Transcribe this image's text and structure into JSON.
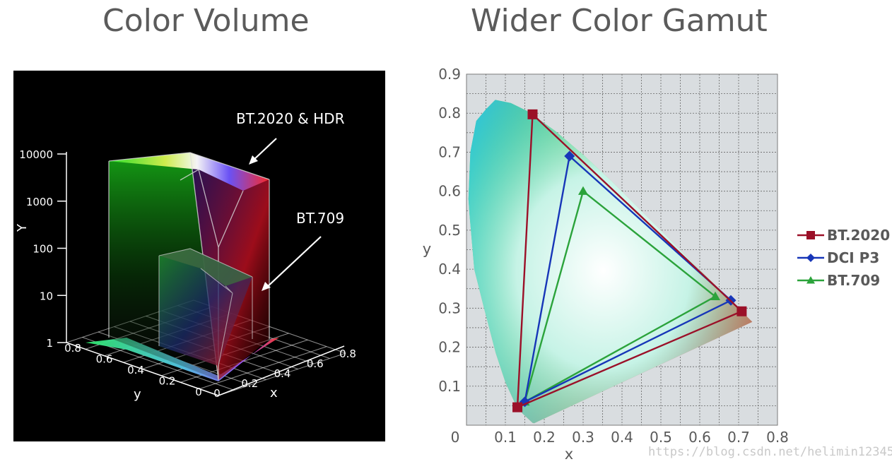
{
  "titles": {
    "left": "Color Volume",
    "right": "Wider Color Gamut"
  },
  "watermark": "https://blog.csdn.net/helimin12345",
  "chart_data": [
    {
      "type": "3d-volume",
      "title": "Color Volume",
      "axes": {
        "Y": {
          "label": "Y",
          "scale": "log",
          "ticks": [
            "1",
            "10",
            "100",
            "1000",
            "10000"
          ]
        },
        "y": {
          "label": "y",
          "ticks": [
            "0",
            "0.2",
            "0.4",
            "0.6",
            "0.8"
          ]
        },
        "x": {
          "label": "x",
          "ticks": [
            "0",
            "0.2",
            "0.4",
            "0.6",
            "0.8"
          ]
        }
      },
      "annotations": [
        {
          "text": "BT.2020 & HDR",
          "points_to": "BT.2020 & HDR volume"
        },
        {
          "text": "BT.709",
          "points_to": "BT.709 volume"
        }
      ],
      "volumes": [
        {
          "name": "BT.2020 & HDR",
          "Y_max": 10000
        },
        {
          "name": "BT.709",
          "Y_max": 100
        }
      ],
      "colors": {
        "background": "#000000",
        "axis": "#ffffff"
      }
    },
    {
      "type": "line",
      "title": "Wider Color Gamut",
      "xlabel": "x",
      "ylabel": "y",
      "xlim": [
        0,
        0.8
      ],
      "ylim": [
        0,
        0.9
      ],
      "x_ticks": [
        "0",
        "0.1",
        "0.2",
        "0.3",
        "0.4",
        "0.5",
        "0.6",
        "0.7",
        "0.8"
      ],
      "y_ticks": [
        "0.1",
        "0.2",
        "0.3",
        "0.4",
        "0.5",
        "0.6",
        "0.7",
        "0.8",
        "0.9"
      ],
      "grid": true,
      "legend_position": "right",
      "series": [
        {
          "name": "BT.2020",
          "marker": "square",
          "color": "#9b1028",
          "points": [
            [
              0.17,
              0.797
            ],
            [
              0.708,
              0.292
            ],
            [
              0.131,
              0.046
            ]
          ]
        },
        {
          "name": "DCI P3",
          "marker": "diamond",
          "color": "#1736b8",
          "points": [
            [
              0.265,
              0.69
            ],
            [
              0.68,
              0.32
            ],
            [
              0.15,
              0.06
            ]
          ]
        },
        {
          "name": "BT.709",
          "marker": "triangle",
          "color": "#2ba33b",
          "points": [
            [
              0.3,
              0.6
            ],
            [
              0.64,
              0.33
            ],
            [
              0.15,
              0.06
            ]
          ]
        }
      ],
      "spectral_locus": [
        [
          0.174,
          0.005
        ],
        [
          0.17,
          0.006
        ],
        [
          0.144,
          0.03
        ],
        [
          0.124,
          0.058
        ],
        [
          0.1,
          0.11
        ],
        [
          0.075,
          0.185
        ],
        [
          0.045,
          0.3
        ],
        [
          0.02,
          0.4
        ],
        [
          0.008,
          0.538
        ],
        [
          0.005,
          0.58
        ],
        [
          0.01,
          0.7
        ],
        [
          0.025,
          0.78
        ],
        [
          0.05,
          0.81
        ],
        [
          0.074,
          0.834
        ],
        [
          0.114,
          0.826
        ],
        [
          0.155,
          0.806
        ],
        [
          0.229,
          0.754
        ],
        [
          0.302,
          0.692
        ],
        [
          0.374,
          0.625
        ],
        [
          0.444,
          0.555
        ],
        [
          0.513,
          0.487
        ],
        [
          0.575,
          0.424
        ],
        [
          0.627,
          0.372
        ],
        [
          0.666,
          0.334
        ],
        [
          0.692,
          0.308
        ],
        [
          0.735,
          0.265
        ]
      ],
      "colors": {
        "plot_background": "#d9dde0",
        "grid": "#666666"
      }
    }
  ]
}
